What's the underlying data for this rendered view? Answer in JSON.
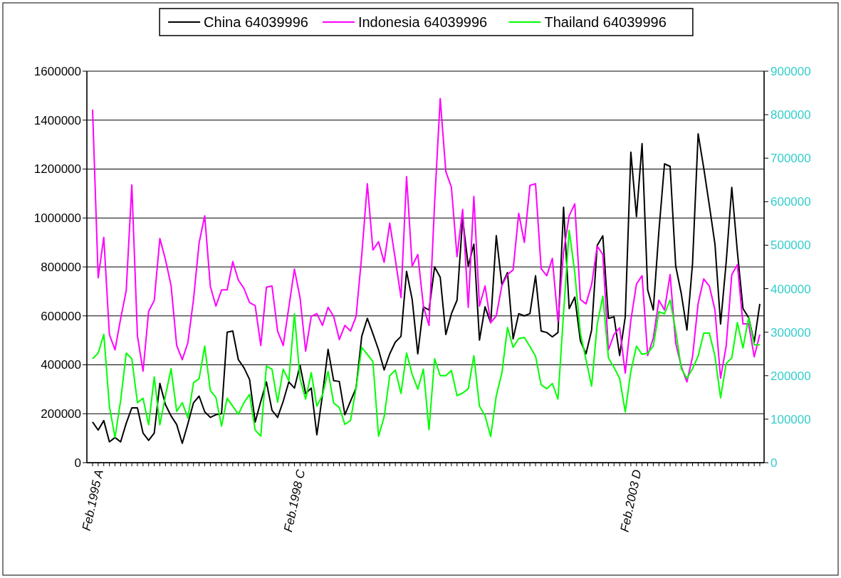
{
  "chart_data": {
    "type": "line",
    "categories": [
      "Feb.1995 A",
      null,
      null,
      null,
      null,
      null,
      null,
      null,
      null,
      null,
      null,
      null,
      null,
      null,
      null,
      null,
      null,
      null,
      null,
      null,
      null,
      null,
      null,
      null,
      null,
      null,
      null,
      null,
      null,
      null,
      null,
      null,
      null,
      null,
      null,
      null,
      "Feb.1998 C",
      null,
      null,
      null,
      null,
      null,
      null,
      null,
      null,
      null,
      null,
      null,
      null,
      null,
      null,
      null,
      null,
      null,
      null,
      null,
      null,
      null,
      null,
      null,
      null,
      null,
      null,
      null,
      null,
      null,
      null,
      null,
      null,
      null,
      null,
      null,
      null,
      null,
      null,
      null,
      null,
      null,
      null,
      null,
      null,
      null,
      null,
      null,
      null,
      null,
      null,
      null,
      null,
      null,
      null,
      null,
      null,
      null,
      null,
      null,
      "Feb.2003 D",
      null,
      null,
      null,
      null,
      null,
      null,
      null,
      null,
      null,
      null,
      null,
      null,
      null,
      null,
      null,
      null,
      null,
      null,
      null,
      null,
      null,
      null,
      null
    ],
    "series": [
      {
        "name": "China 64039996",
        "color": "#000000",
        "values": [
          166000,
          133000,
          172000,
          85000,
          103000,
          85000,
          161000,
          224000,
          224000,
          121000,
          91000,
          121000,
          324000,
          237000,
          191000,
          156000,
          79000,
          159000,
          245000,
          272000,
          208000,
          185000,
          196000,
          200000,
          533000,
          538000,
          421000,
          388000,
          340000,
          166000,
          250000,
          330000,
          214000,
          185000,
          251000,
          330000,
          305000,
          398000,
          282000,
          305000,
          114000,
          277000,
          463000,
          335000,
          332000,
          196000,
          251000,
          305000,
          516000,
          590000,
          527000,
          461000,
          379000,
          445000,
          493000,
          516000,
          782000,
          667000,
          445000,
          637000,
          624000,
          800000,
          758000,
          524000,
          609000,
          664000,
          998000,
          803000,
          893000,
          501000,
          637000,
          572000,
          928000,
          727000,
          777000,
          506000,
          609000,
          600000,
          609000,
          764000,
          538000,
          532000,
          514000,
          532000,
          1044000,
          630000,
          677000,
          498000,
          445000,
          542000,
          888000,
          927000,
          590000,
          596000,
          438000,
          596000,
          1269000,
          1006000,
          1304000,
          706000,
          624000,
          946000,
          1221000,
          1211000,
          803000,
          690000,
          542000,
          814000,
          1344000,
          1204000,
          1051000,
          893000,
          567000,
          819000,
          1125000,
          861000,
          630000,
          593000,
          493000,
          649000
        ]
      },
      {
        "name": "Indonesia 64039996",
        "color": "#ff00ff",
        "values": [
          1443000,
          756000,
          921000,
          524000,
          461000,
          588000,
          703000,
          1135000,
          519000,
          374000,
          619000,
          663000,
          916000,
          830000,
          724000,
          479000,
          421000,
          491000,
          667000,
          898000,
          1009000,
          721000,
          640000,
          706000,
          706000,
          822000,
          746000,
          712000,
          654000,
          642000,
          479000,
          717000,
          722000,
          538000,
          479000,
          635000,
          791000,
          674000,
          456000,
          598000,
          609000,
          561000,
          635000,
          598000,
          503000,
          561000,
          538000,
          598000,
          846000,
          1140000,
          869000,
          903000,
          819000,
          979000,
          830000,
          675000,
          1169000,
          803000,
          851000,
          640000,
          561000,
          1061000,
          1488000,
          1190000,
          1125000,
          842000,
          1035000,
          635000,
          1088000,
          640000,
          722000,
          572000,
          600000,
          724000,
          769000,
          788000,
          1019000,
          900000,
          1133000,
          1140000,
          793000,
          764000,
          835000,
          577000,
          861000,
          1009000,
          1058000,
          667000,
          649000,
          727000,
          885000,
          851000,
          461000,
          524000,
          551000,
          366000,
          582000,
          730000,
          764000,
          438000,
          509000,
          664000,
          624000,
          769000,
          488000,
          393000,
          330000,
          433000,
          651000,
          751000,
          722000,
          624000,
          345000,
          477000,
          769000,
          809000,
          567000,
          567000,
          433000,
          524000
        ]
      },
      {
        "name": "Thailand 64039996",
        "color": "#00ff00",
        "axis": "y2",
        "values": [
          239000,
          252000,
          295000,
          130000,
          58000,
          142000,
          252000,
          239000,
          138000,
          148000,
          87000,
          197000,
          87000,
          154000,
          216000,
          118000,
          138000,
          103000,
          184000,
          193000,
          268000,
          166000,
          150000,
          84000,
          148000,
          130000,
          111000,
          138000,
          157000,
          75000,
          61000,
          222000,
          215000,
          139000,
          215000,
          188000,
          342000,
          193000,
          146000,
          207000,
          130000,
          155000,
          210000,
          137000,
          127000,
          88000,
          97000,
          172000,
          265000,
          249000,
          232000,
          61000,
          105000,
          200000,
          213000,
          159000,
          252000,
          203000,
          169000,
          215000,
          76000,
          239000,
          200000,
          200000,
          212000,
          154000,
          160000,
          170000,
          246000,
          130000,
          108000,
          60000,
          154000,
          206000,
          311000,
          265000,
          285000,
          288000,
          267000,
          245000,
          179000,
          170000,
          182000,
          146000,
          344000,
          534000,
          437000,
          297000,
          237000,
          176000,
          318000,
          383000,
          241000,
          219000,
          194000,
          117000,
          210000,
          268000,
          249000,
          252000,
          268000,
          347000,
          342000,
          374000,
          303000,
          216000,
          194000,
          216000,
          245000,
          298000,
          298000,
          245000,
          149000,
          228000,
          241000,
          322000,
          264000,
          333000,
          271000,
          271000
        ]
      }
    ],
    "ylim": [
      0,
      1600000
    ],
    "yticks": [
      0,
      200000,
      400000,
      600000,
      800000,
      1000000,
      1200000,
      1400000,
      1600000
    ],
    "y2lim": [
      0,
      900000
    ],
    "y2ticks": [
      0,
      100000,
      200000,
      300000,
      400000,
      500000,
      600000,
      700000,
      800000,
      900000
    ],
    "grid": "y",
    "legend": "top",
    "marker": "none",
    "line_style": "solid"
  }
}
